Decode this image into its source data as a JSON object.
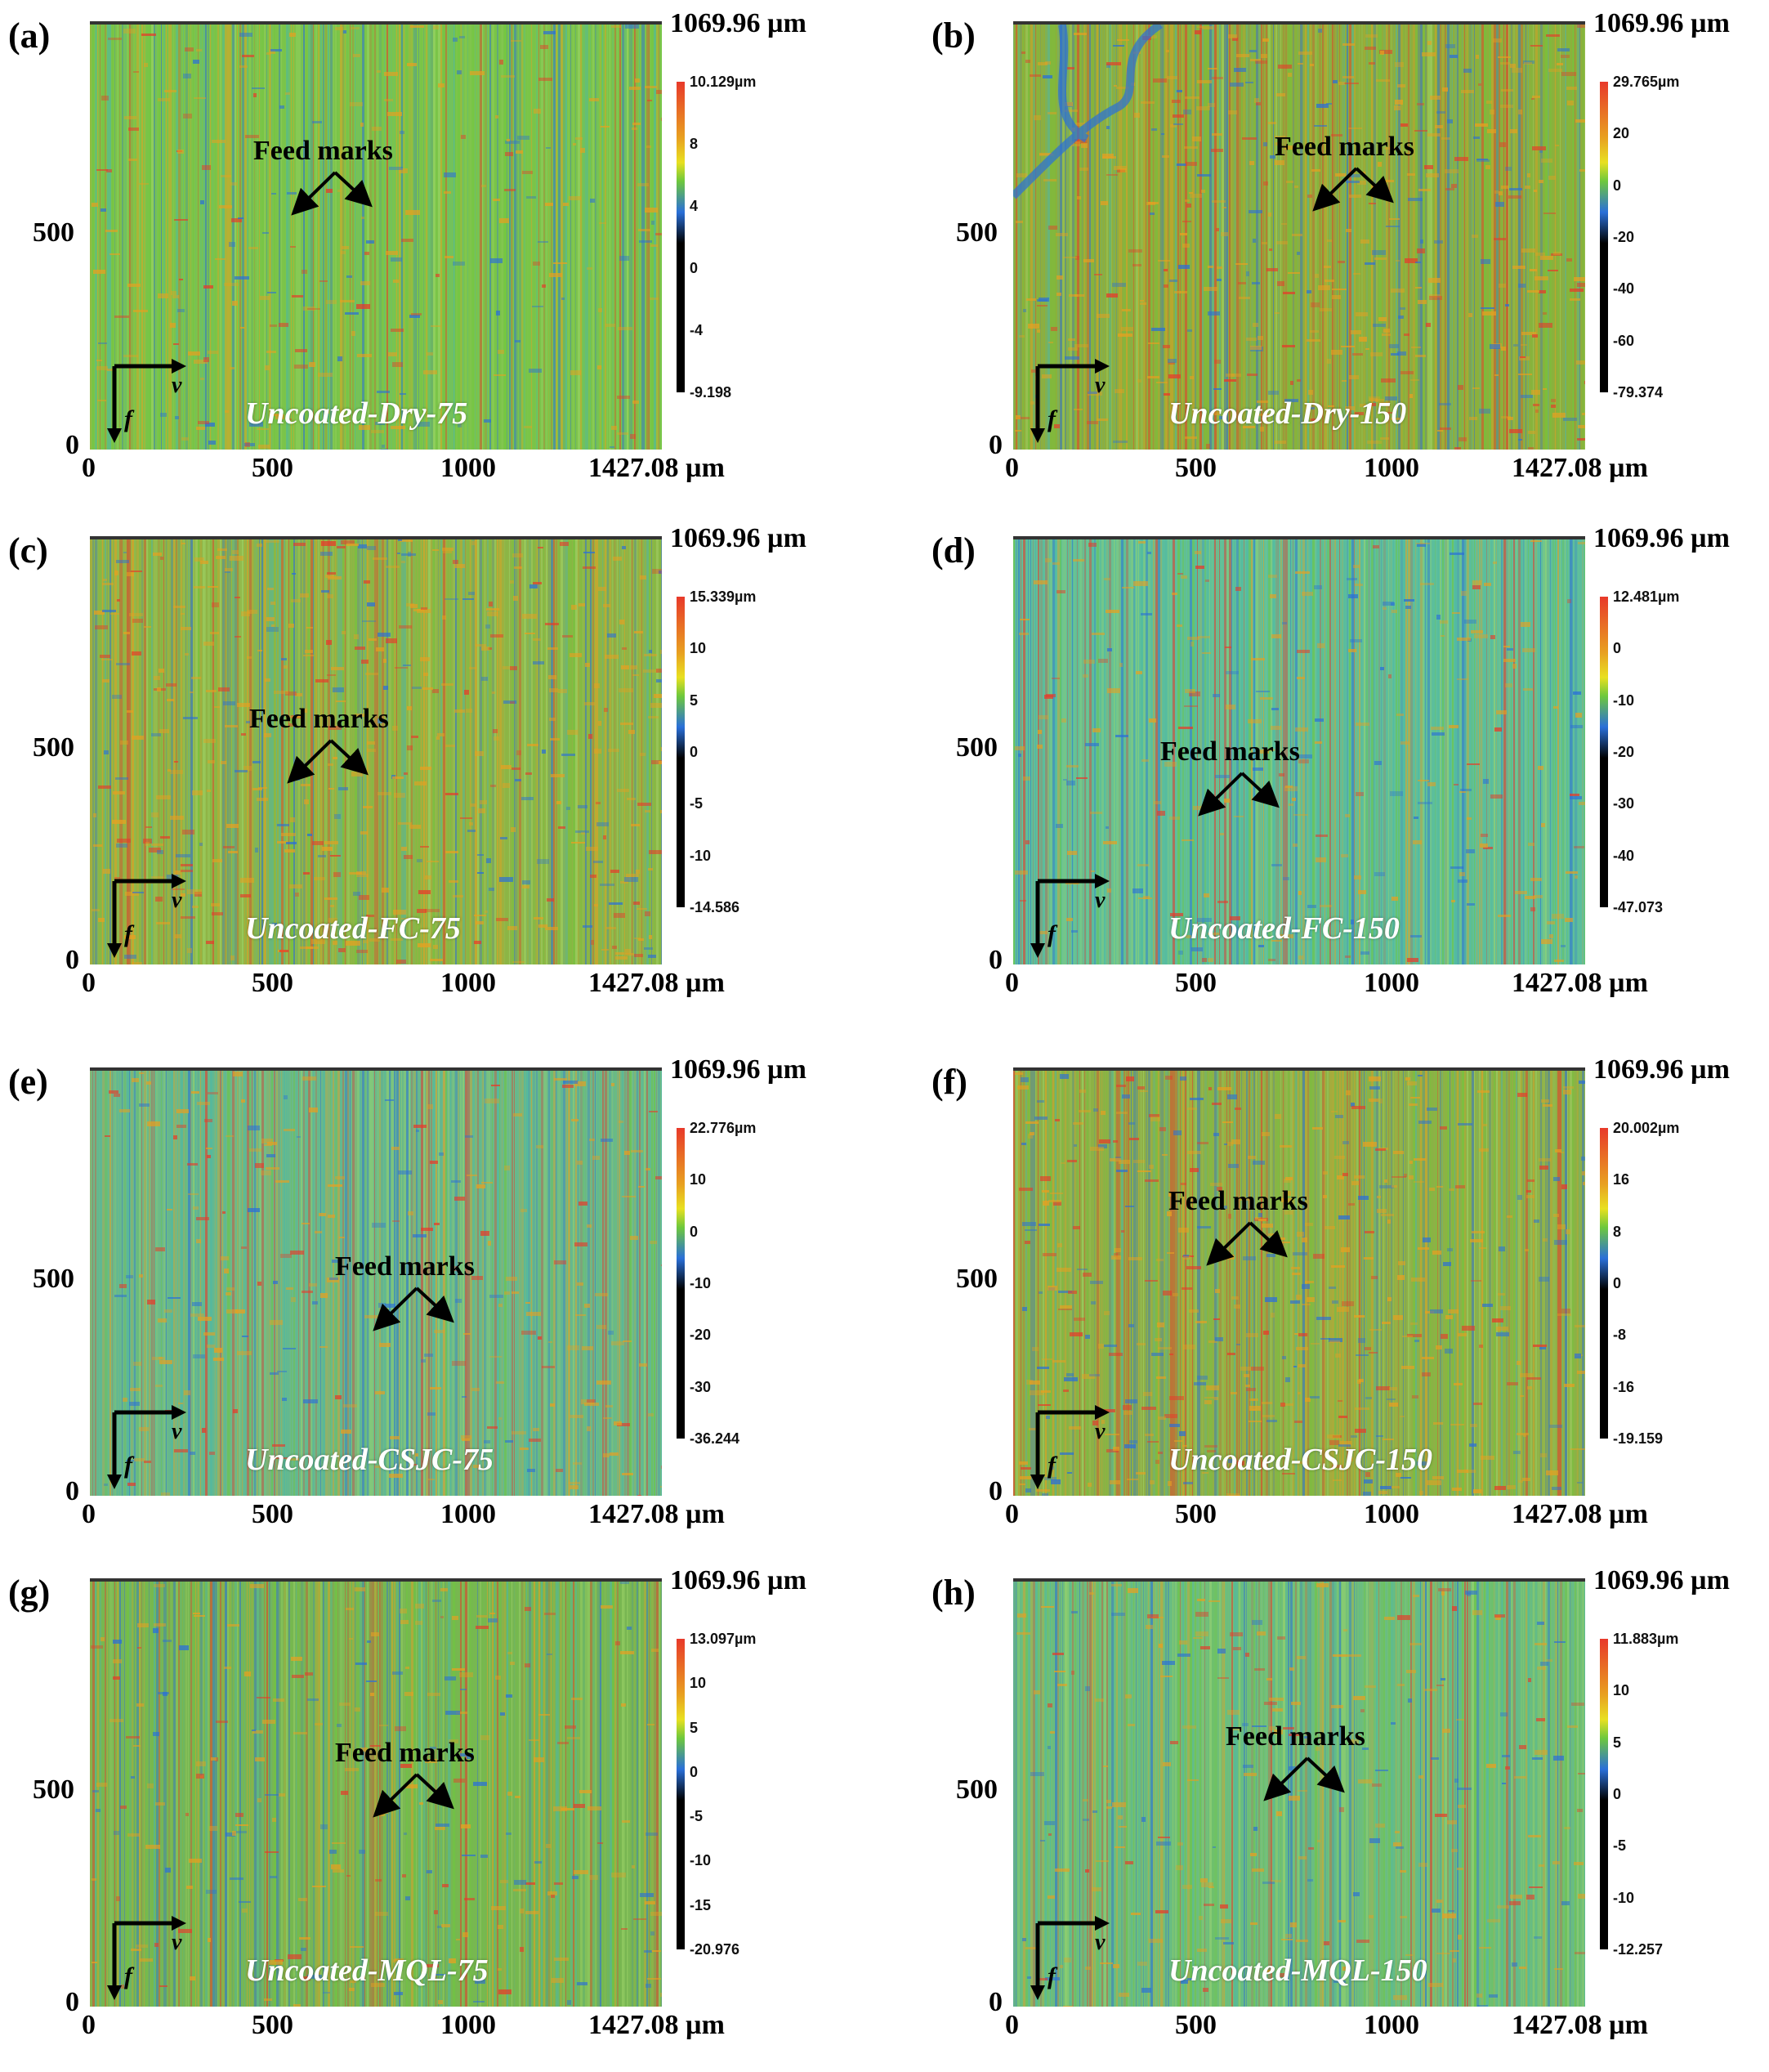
{
  "axis_top_label": "1069.96 µm",
  "x_ticks": [
    "0",
    "500",
    "1000"
  ],
  "x_end_label": "1427.08 µm",
  "y_ticks": [
    "0",
    "500"
  ],
  "feed_label": "Feed marks",
  "v_label": "v",
  "f_label": "f",
  "colors": {
    "red": "#e8392a",
    "orange": "#e8a020",
    "green": "#6ec83c",
    "teal": "#4ab8a8",
    "blue": "#2a6fd8",
    "black": "#000000"
  },
  "panels": [
    {
      "label": "(a)",
      "condition": "Uncoated-Dry-75",
      "scale": [
        "10.129µm",
        "8",
        "4",
        "0",
        "-4",
        "-9.198"
      ]
    },
    {
      "label": "(b)",
      "condition": "Uncoated-Dry-150",
      "scale": [
        "29.765µm",
        "20",
        "0",
        "-20",
        "-40",
        "-60",
        "-79.374"
      ]
    },
    {
      "label": "(c)",
      "condition": "Uncoated-FC-75",
      "scale": [
        "15.339µm",
        "10",
        "5",
        "0",
        "-5",
        "-10",
        "-14.586"
      ]
    },
    {
      "label": "(d)",
      "condition": "Uncoated-FC-150",
      "scale": [
        "12.481µm",
        "0",
        "-10",
        "-20",
        "-30",
        "-40",
        "-47.073"
      ]
    },
    {
      "label": "(e)",
      "condition": "Uncoated-CSJC-75",
      "scale": [
        "22.776µm",
        "10",
        "0",
        "-10",
        "-20",
        "-30",
        "-36.244"
      ]
    },
    {
      "label": "(f)",
      "condition": "Uncoated-CSJC-150",
      "scale": [
        "20.002µm",
        "16",
        "8",
        "0",
        "-8",
        "-16",
        "-19.159"
      ]
    },
    {
      "label": "(g)",
      "condition": "Uncoated-MQL-75",
      "scale": [
        "13.097µm",
        "10",
        "5",
        "0",
        "-5",
        "-10",
        "-15",
        "-20.976"
      ]
    },
    {
      "label": "(h)",
      "condition": "Uncoated-MQL-150",
      "scale": [
        "11.883µm",
        "10",
        "5",
        "0",
        "-5",
        "-10",
        "-12.257"
      ]
    }
  ]
}
